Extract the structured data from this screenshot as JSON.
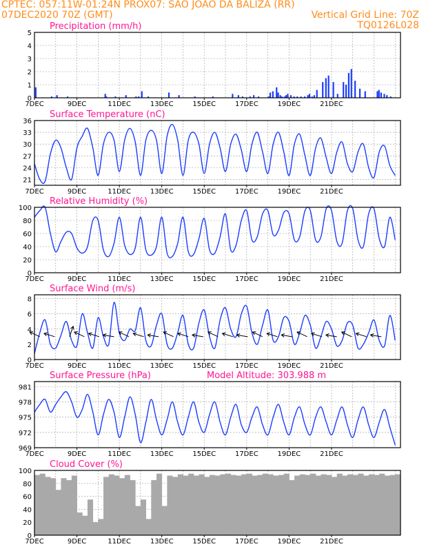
{
  "header": {
    "line1_left": "CPTEC:  057:11W-01:24N  PROX07: SAO JOAO DA BALIZA (RR)",
    "line2_left": "07DEC2020 70Z (GMT)",
    "line2_right": "Vertical Grid Line: 70Z",
    "line3_right": "TQ0126L028"
  },
  "colors": {
    "header": "#ff8c1a",
    "title": "#ff1493",
    "series": "#1a3cff",
    "bar": "#1a3cff",
    "cloud": "#a9a9a9"
  },
  "chart_data": [
    {
      "type": "bar",
      "title": "Precipitation  (mm/h)",
      "ylim": [
        0,
        5
      ],
      "yticks": [
        "0",
        "1",
        "2",
        "3",
        "4",
        "5"
      ],
      "x_labels": [
        "7DEC",
        "9DEC",
        "11DEC",
        "13DEC",
        "15DEC",
        "17DEC",
        "19DEC",
        "21DEC"
      ],
      "x": [
        0.1,
        3.1,
        4.1,
        6.1,
        13.2,
        13.4,
        15.1,
        17.1,
        19.0,
        19.5,
        20.1,
        21.3,
        25.2,
        27.1,
        30.1,
        33.5,
        37.2,
        38.3,
        39.1,
        40.5,
        41.2,
        42.1,
        44.0,
        44.3,
        44.8,
        45.5,
        45.8,
        46.2,
        46.5,
        47.0,
        47.3,
        47.6,
        48.2,
        48.8,
        49.4,
        50.1,
        50.8,
        51.4,
        51.7,
        52.2,
        52.6,
        53.1,
        54.2,
        54.8,
        55.3,
        56.2,
        57.0,
        58.1,
        58.6,
        59.1,
        59.6,
        60.3,
        61.2,
        62.2,
        64.5,
        64.8,
        65.2,
        65.8,
        66.3,
        67.0
      ],
      "values": [
        0.8,
        0.1,
        0.2,
        0.1,
        0.3,
        0.1,
        0.1,
        0.2,
        0.1,
        0.1,
        0.5,
        0.1,
        0.4,
        0.2,
        0.1,
        0.1,
        0.3,
        0.2,
        0.1,
        0.1,
        0.2,
        0.1,
        0.1,
        0.4,
        0.5,
        0.8,
        0.4,
        0.2,
        0.1,
        0.1,
        0.2,
        0.3,
        0.2,
        0.1,
        0.1,
        0.1,
        0.1,
        0.2,
        0.3,
        0.1,
        0.2,
        0.6,
        1.2,
        1.5,
        1.7,
        1.2,
        0.3,
        1.2,
        1.0,
        1.9,
        2.2,
        1.3,
        0.7,
        0.5,
        0.5,
        0.6,
        0.4,
        0.3,
        0.2,
        0.1
      ]
    },
    {
      "type": "line",
      "title": "Surface Temperature (nC)",
      "ylim": [
        19.5,
        36
      ],
      "yticks": [
        "21",
        "24",
        "27",
        "30",
        "33",
        "36"
      ],
      "x_labels": [
        "7DEC",
        "9DEC",
        "11DEC",
        "13DEC",
        "15DEC",
        "17DEC",
        "19DEC",
        "21DEC"
      ],
      "x": [
        0,
        1,
        2,
        3,
        4,
        5,
        6,
        7,
        8,
        9,
        10,
        11,
        12,
        13,
        14,
        15,
        16,
        17,
        18,
        19,
        20,
        21,
        22,
        23,
        24,
        25,
        26,
        27,
        28,
        29,
        30,
        31,
        32,
        33,
        34,
        35,
        36,
        37,
        38,
        39,
        40,
        41,
        42,
        43,
        44,
        45,
        46,
        47,
        48,
        49,
        50,
        51,
        52,
        53,
        54,
        55,
        56,
        57,
        58,
        59,
        60,
        61,
        62,
        63,
        64,
        65,
        66,
        67,
        68
      ],
      "values": [
        25,
        21,
        20.5,
        27.5,
        31,
        29,
        24,
        21,
        29,
        32,
        34,
        29,
        22,
        30,
        33,
        31,
        23,
        31,
        34,
        30.5,
        22,
        31,
        33.5,
        31,
        22.5,
        32,
        35,
        31,
        22,
        31,
        33,
        30,
        22.5,
        30,
        33,
        29,
        23,
        30,
        32.5,
        28.5,
        23,
        30,
        33,
        28,
        22.5,
        30,
        33,
        28,
        22,
        30,
        32.5,
        27,
        22,
        29,
        31.5,
        26.5,
        22.5,
        28,
        30.5,
        25,
        23,
        28,
        30,
        24,
        21.5,
        28,
        29.5,
        24.5,
        22
      ]
    },
    {
      "type": "line",
      "title": "Relative Humidity (%)",
      "ylim": [
        0,
        100
      ],
      "yticks": [
        "0",
        "20",
        "40",
        "60",
        "80",
        "100"
      ],
      "x_labels": [
        "7DEC",
        "9DEC",
        "11DEC",
        "13DEC",
        "15DEC",
        "17DEC",
        "19DEC",
        "21DEC"
      ],
      "x": [
        0,
        1,
        2,
        3,
        4,
        5,
        6,
        7,
        8,
        9,
        10,
        11,
        12,
        13,
        14,
        15,
        16,
        17,
        18,
        19,
        20,
        21,
        22,
        23,
        24,
        25,
        26,
        27,
        28,
        29,
        30,
        31,
        32,
        33,
        34,
        35,
        36,
        37,
        38,
        39,
        40,
        41,
        42,
        43,
        44,
        45,
        46,
        47,
        48,
        49,
        50,
        51,
        52,
        53,
        54,
        55,
        56,
        57,
        58,
        59,
        60,
        61,
        62,
        63,
        64,
        65,
        66,
        67,
        68
      ],
      "values": [
        85,
        95,
        100,
        60,
        32,
        48,
        62,
        60,
        38,
        30,
        40,
        80,
        80,
        35,
        25,
        45,
        85,
        42,
        28,
        38,
        85,
        35,
        27,
        40,
        85,
        30,
        25,
        45,
        85,
        32,
        28,
        52,
        83,
        35,
        30,
        55,
        90,
        35,
        42,
        80,
        95,
        50,
        55,
        90,
        95,
        58,
        65,
        92,
        90,
        50,
        55,
        95,
        95,
        50,
        55,
        98,
        95,
        48,
        45,
        95,
        98,
        50,
        40,
        90,
        98,
        52,
        40,
        85,
        50
      ]
    },
    {
      "type": "line",
      "title": "Surface Wind  (m/s)",
      "ylim": [
        0,
        8.5
      ],
      "yticks": [
        "0",
        "2",
        "4",
        "6",
        "8"
      ],
      "x_labels": [
        "7DEC",
        "9DEC",
        "11DEC",
        "13DEC",
        "15DEC",
        "17DEC",
        "19DEC",
        "21DEC"
      ],
      "x": [
        0,
        1,
        2,
        3,
        4,
        5,
        6,
        7,
        8,
        9,
        10,
        11,
        12,
        13,
        14,
        15,
        16,
        17,
        18,
        19,
        20,
        21,
        22,
        23,
        24,
        25,
        26,
        27,
        28,
        29,
        30,
        31,
        32,
        33,
        34,
        35,
        36,
        37,
        38,
        39,
        40,
        41,
        42,
        43,
        44,
        45,
        46,
        47,
        48,
        49,
        50,
        51,
        52,
        53,
        54,
        55,
        56,
        57,
        58,
        59,
        60,
        61,
        62,
        63,
        64,
        65,
        66,
        67,
        68
      ],
      "values": [
        0.8,
        3.5,
        5.2,
        2.0,
        1.5,
        3.2,
        5.0,
        2.5,
        1.8,
        6.0,
        3.5,
        1.5,
        5.5,
        3.0,
        2.0,
        7.5,
        3.5,
        2.5,
        4.0,
        3.8,
        6.8,
        2.5,
        1.8,
        4.5,
        6.0,
        2.0,
        1.5,
        3.5,
        5.8,
        2.0,
        1.5,
        4.8,
        6.5,
        3.0,
        1.5,
        5.2,
        6.8,
        4.0,
        3.0,
        6.0,
        7.0,
        3.5,
        2.0,
        4.5,
        6.5,
        2.5,
        3.0,
        5.5,
        5.0,
        2.0,
        3.5,
        5.8,
        4.5,
        1.5,
        3.0,
        5.0,
        4.0,
        1.8,
        2.5,
        4.8,
        4.5,
        1.5,
        2.0,
        3.5,
        5.2,
        2.5,
        1.8,
        5.8,
        2.5
      ]
    },
    {
      "type": "line",
      "title": "Surface Pressure (hPa)",
      "subtitle": "Model Altitude: 303.988  m",
      "ylim": [
        969,
        982
      ],
      "yticks": [
        "969",
        "972",
        "975",
        "978",
        "981"
      ],
      "x_labels": [
        "7DEC",
        "9DEC",
        "11DEC",
        "13DEC",
        "15DEC",
        "17DEC",
        "19DEC",
        "21DEC"
      ],
      "x": [
        0,
        1,
        2,
        3,
        4,
        5,
        6,
        7,
        8,
        9,
        10,
        11,
        12,
        13,
        14,
        15,
        16,
        17,
        18,
        19,
        20,
        21,
        22,
        23,
        24,
        25,
        26,
        27,
        28,
        29,
        30,
        31,
        32,
        33,
        34,
        35,
        36,
        37,
        38,
        39,
        40,
        41,
        42,
        43,
        44,
        45,
        46,
        47,
        48,
        49,
        50,
        51,
        52,
        53,
        54,
        55,
        56,
        57,
        58,
        59,
        60,
        61,
        62,
        63,
        64,
        65,
        66,
        67,
        68
      ],
      "values": [
        976,
        977.5,
        978.5,
        976,
        977.5,
        979,
        980,
        978,
        975,
        976.5,
        979.5,
        976,
        971.5,
        975.5,
        978.5,
        976,
        971,
        975,
        979,
        975.5,
        970,
        974,
        978.5,
        974.5,
        971.5,
        974.5,
        978,
        974,
        971.5,
        975,
        978,
        974,
        972,
        975.5,
        978,
        974,
        971.5,
        975,
        977.5,
        973.5,
        972,
        975,
        977,
        973.5,
        971.5,
        975,
        977.5,
        974,
        971.5,
        975,
        977,
        973.5,
        971.5,
        975,
        977,
        974,
        971.5,
        974.5,
        977,
        973.5,
        971,
        974.5,
        977,
        973.5,
        971,
        974,
        976.5,
        973,
        969.5
      ]
    },
    {
      "type": "bar",
      "title": "Cloud Cover  (%)",
      "ylim": [
        0,
        100
      ],
      "yticks": [
        "0",
        "20",
        "40",
        "60",
        "80",
        "100"
      ],
      "x_labels": [
        "7DEC",
        "9DEC",
        "11DEC",
        "13DEC",
        "15DEC",
        "17DEC",
        "19DEC",
        "21DEC"
      ],
      "x": [
        0,
        1,
        2,
        3,
        4,
        5,
        6,
        7,
        8,
        9,
        10,
        11,
        12,
        13,
        14,
        15,
        16,
        17,
        18,
        19,
        20,
        21,
        22,
        23,
        24,
        25,
        26,
        27,
        28,
        29,
        30,
        31,
        32,
        33,
        34,
        35,
        36,
        37,
        38,
        39,
        40,
        41,
        42,
        43,
        44,
        45,
        46,
        47,
        48,
        49,
        50,
        51,
        52,
        53,
        54,
        55,
        56,
        57,
        58,
        59,
        60,
        61,
        62,
        63,
        64,
        65,
        66,
        67,
        68
      ],
      "values": [
        93,
        95,
        90,
        88,
        70,
        88,
        85,
        92,
        35,
        30,
        55,
        20,
        25,
        90,
        94,
        92,
        88,
        93,
        85,
        45,
        55,
        25,
        85,
        95,
        45,
        92,
        90,
        94,
        92,
        95,
        92,
        94,
        90,
        93,
        92,
        94,
        95,
        93,
        92,
        94,
        95,
        92,
        93,
        95,
        94,
        92,
        93,
        95,
        85,
        92,
        94,
        93,
        95,
        92,
        94,
        93,
        90,
        95,
        92,
        94,
        93,
        95,
        92,
        94,
        93,
        95,
        92,
        93,
        94
      ]
    }
  ]
}
